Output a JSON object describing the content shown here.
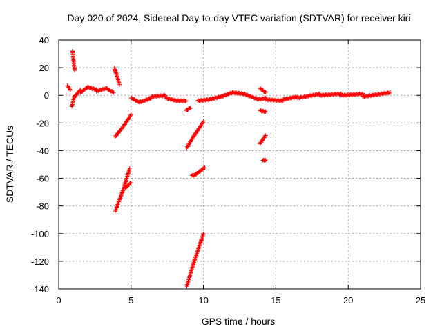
{
  "chart_data": {
    "type": "scatter",
    "title": "Day 020 of 2024, Sidereal Day-to-day VTEC variation (SDTVAR) for receiver kiri",
    "xlabel": "GPS time / hours",
    "ylabel": "SDTVAR / TECUs",
    "xlim": [
      0,
      25
    ],
    "ylim": [
      -140,
      40
    ],
    "xticks": [
      0,
      5,
      10,
      15,
      20,
      25
    ],
    "yticks": [
      -140,
      -120,
      -100,
      -80,
      -60,
      -40,
      -20,
      0,
      20,
      40
    ],
    "grid": true,
    "marker": "+",
    "color": "#ff0000",
    "segments": [
      {
        "x": [
          0.6,
          0.8
        ],
        "y": [
          7,
          4
        ]
      },
      {
        "x": [
          0.9,
          1.1
        ],
        "y": [
          -8,
          0
        ]
      },
      {
        "x": [
          0.95,
          1.1
        ],
        "y": [
          32,
          18
        ]
      },
      {
        "x": [
          1.1,
          1.5
        ],
        "y": [
          -1,
          4
        ]
      },
      {
        "x": [
          1.5,
          2.0
        ],
        "y": [
          2,
          6
        ]
      },
      {
        "x": [
          2.0,
          2.6
        ],
        "y": [
          6,
          4
        ]
      },
      {
        "x": [
          2.6,
          3.3
        ],
        "y": [
          3,
          5
        ]
      },
      {
        "x": [
          3.3,
          3.8
        ],
        "y": [
          5,
          2
        ]
      },
      {
        "x": [
          3.85,
          4.2
        ],
        "y": [
          20,
          8
        ]
      },
      {
        "x": [
          3.9,
          4.5
        ],
        "y": [
          -30,
          -22
        ]
      },
      {
        "x": [
          4.5,
          5.0
        ],
        "y": [
          -22,
          -14
        ]
      },
      {
        "x": [
          3.9,
          4.4
        ],
        "y": [
          -84,
          -70
        ]
      },
      {
        "x": [
          4.4,
          4.9
        ],
        "y": [
          -70,
          -53
        ]
      },
      {
        "x": [
          4.6,
          5.0
        ],
        "y": [
          -67,
          -63
        ]
      },
      {
        "x": [
          5.0,
          5.6
        ],
        "y": [
          -2,
          -5
        ]
      },
      {
        "x": [
          5.6,
          6.4
        ],
        "y": [
          -5,
          -2
        ]
      },
      {
        "x": [
          6.4,
          7.4
        ],
        "y": [
          -1,
          0
        ]
      },
      {
        "x": [
          7.4,
          8.2
        ],
        "y": [
          -2,
          -4
        ]
      },
      {
        "x": [
          8.2,
          8.8
        ],
        "y": [
          -4,
          -4
        ]
      },
      {
        "x": [
          8.85,
          9.3
        ],
        "y": [
          -38,
          -30
        ]
      },
      {
        "x": [
          9.3,
          10.0
        ],
        "y": [
          -30,
          -19
        ]
      },
      {
        "x": [
          8.8,
          9.1
        ],
        "y": [
          -11,
          -9
        ]
      },
      {
        "x": [
          9.2,
          9.5
        ],
        "y": [
          -58,
          -57
        ]
      },
      {
        "x": [
          9.5,
          10.1
        ],
        "y": [
          -57,
          -52
        ]
      },
      {
        "x": [
          8.85,
          9.3
        ],
        "y": [
          -138,
          -122
        ]
      },
      {
        "x": [
          9.3,
          10.0
        ],
        "y": [
          -122,
          -100
        ]
      },
      {
        "x": [
          9.6,
          10.4
        ],
        "y": [
          -4,
          -3
        ]
      },
      {
        "x": [
          10.4,
          11.2
        ],
        "y": [
          -3,
          -1
        ]
      },
      {
        "x": [
          11.2,
          12.0
        ],
        "y": [
          -1,
          2
        ]
      },
      {
        "x": [
          12.0,
          12.8
        ],
        "y": [
          2,
          1
        ]
      },
      {
        "x": [
          12.8,
          13.8
        ],
        "y": [
          1,
          -3
        ]
      },
      {
        "x": [
          13.8,
          14.3
        ],
        "y": [
          -3,
          -2
        ]
      },
      {
        "x": [
          13.9,
          14.3
        ],
        "y": [
          5,
          2
        ]
      },
      {
        "x": [
          13.9,
          14.3
        ],
        "y": [
          -11,
          -12
        ]
      },
      {
        "x": [
          13.9,
          14.3
        ],
        "y": [
          -35,
          -29
        ]
      },
      {
        "x": [
          14.1,
          14.3
        ],
        "y": [
          -47,
          -47
        ]
      },
      {
        "x": [
          14.3,
          15.5
        ],
        "y": [
          -3,
          -4
        ]
      },
      {
        "x": [
          15.5,
          16.5
        ],
        "y": [
          -3,
          -1
        ]
      },
      {
        "x": [
          16.5,
          18.0
        ],
        "y": [
          -2,
          1
        ]
      },
      {
        "x": [
          18.0,
          19.5
        ],
        "y": [
          0,
          1
        ]
      },
      {
        "x": [
          19.5,
          21.0
        ],
        "y": [
          0,
          1
        ]
      },
      {
        "x": [
          21.0,
          22.9
        ],
        "y": [
          -1,
          2
        ]
      }
    ]
  }
}
